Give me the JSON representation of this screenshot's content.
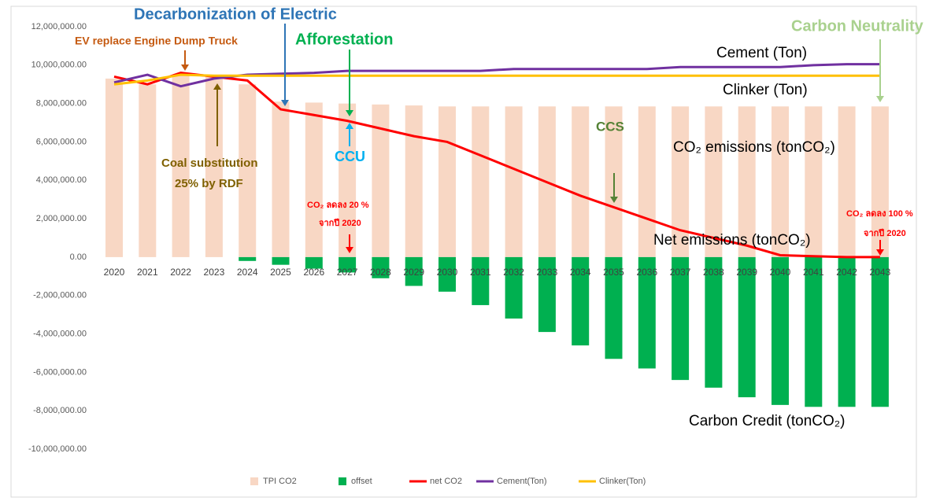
{
  "chart_data": {
    "type": "bar-line",
    "categories": [
      "2020",
      "2021",
      "2022",
      "2023",
      "2024",
      "2025",
      "2026",
      "2027",
      "2028",
      "2029",
      "2030",
      "2031",
      "2032",
      "2033",
      "2034",
      "2035",
      "2036",
      "2037",
      "2038",
      "2039",
      "2040",
      "2041",
      "2042",
      "2043"
    ],
    "series": [
      {
        "name": "TPI CO2",
        "type": "bar",
        "color": "#f8d7c4",
        "values": [
          9300000,
          9000000,
          9500000,
          9400000,
          9000000,
          8100000,
          8050000,
          8000000,
          7950000,
          7900000,
          7850000,
          7850000,
          7850000,
          7850000,
          7850000,
          7850000,
          7850000,
          7850000,
          7850000,
          7850000,
          7850000,
          7850000,
          7850000,
          7850000
        ]
      },
      {
        "name": "offset",
        "type": "bar",
        "color": "#00b050",
        "values": [
          0,
          0,
          0,
          0,
          -200000,
          -400000,
          -600000,
          -800000,
          -1100000,
          -1500000,
          -1800000,
          -2500000,
          -3200000,
          -3900000,
          -4600000,
          -5300000,
          -5800000,
          -6400000,
          -6800000,
          -7300000,
          -7700000,
          -7800000,
          -7800000,
          -7800000
        ]
      },
      {
        "name": "net CO2",
        "type": "line",
        "color": "#ff0000",
        "values": [
          9400000,
          9000000,
          9600000,
          9400000,
          9200000,
          7700000,
          7400000,
          7100000,
          6700000,
          6300000,
          6000000,
          5300000,
          4600000,
          3900000,
          3200000,
          2600000,
          2000000,
          1400000,
          1000000,
          600000,
          100000,
          50000,
          0,
          0
        ]
      },
      {
        "name": "Cement(Ton)",
        "type": "line",
        "color": "#7030a0",
        "values": [
          9100000,
          9500000,
          8900000,
          9300000,
          9500000,
          9550000,
          9600000,
          9700000,
          9700000,
          9700000,
          9700000,
          9700000,
          9800000,
          9800000,
          9800000,
          9800000,
          9800000,
          9900000,
          9900000,
          9900000,
          9900000,
          10000000,
          10050000,
          10050000
        ]
      },
      {
        "name": "Clinker(Ton)",
        "type": "line",
        "color": "#ffc000",
        "values": [
          9000000,
          9200000,
          9500000,
          9450000,
          9450000,
          9450000,
          9450000,
          9450000,
          9450000,
          9450000,
          9450000,
          9450000,
          9450000,
          9450000,
          9450000,
          9450000,
          9450000,
          9450000,
          9450000,
          9450000,
          9450000,
          9450000,
          9450000,
          9450000
        ]
      }
    ],
    "ylim": [
      -10000000,
      12000000
    ],
    "yticks": [
      {
        "value": -10000000,
        "label": "-10,000,000.00"
      },
      {
        "value": -8000000,
        "label": "-8,000,000.00"
      },
      {
        "value": -6000000,
        "label": "-6,000,000.00"
      },
      {
        "value": -4000000,
        "label": "-4,000,000.00"
      },
      {
        "value": -2000000,
        "label": "-2,000,000.00"
      },
      {
        "value": 0,
        "label": "0.00"
      },
      {
        "value": 2000000,
        "label": "2,000,000.00"
      },
      {
        "value": 4000000,
        "label": "4,000,000.00"
      },
      {
        "value": 6000000,
        "label": "6,000,000.00"
      },
      {
        "value": 8000000,
        "label": "8,000,000.00"
      },
      {
        "value": 10000000,
        "label": "10,000,000.00"
      },
      {
        "value": 12000000,
        "label": "12,000,000.00"
      }
    ],
    "grid": false,
    "legend": "bottom",
    "annotations": [
      {
        "text": "Decarbonization of Electric",
        "color": "#2e75b6"
      },
      {
        "text": "EV replace Engine Dump Truck",
        "color": "#c55a11"
      },
      {
        "text": "Afforestation",
        "color": "#00b050"
      },
      {
        "text": "Carbon Neutrality",
        "color": "#a9d18e"
      },
      {
        "text": "Cement (Ton)",
        "color": "#000000"
      },
      {
        "text": "Clinker (Ton)",
        "color": "#000000"
      },
      {
        "text": "CCS",
        "color": "#548235"
      },
      {
        "text": "CO₂ emissions (tonCO₂)",
        "color": "#000000"
      },
      {
        "text": "Coal substitution",
        "color": "#7f6000"
      },
      {
        "text": "25% by RDF",
        "color": "#7f6000"
      },
      {
        "text": "CCU",
        "color": "#00b0f0"
      },
      {
        "text": "CO₂ ลดลง 20 %",
        "color": "#ff0000"
      },
      {
        "text": "จากปี 2020",
        "color": "#ff0000"
      },
      {
        "text": "Net emissions (tonCO₂)",
        "color": "#000000"
      },
      {
        "text": "CO₂ ลดลง 100 %",
        "color": "#ff0000"
      },
      {
        "text": "จากปี 2020",
        "color": "#ff0000"
      },
      {
        "text": "Carbon Credit (tonCO₂)",
        "color": "#000000"
      }
    ]
  }
}
